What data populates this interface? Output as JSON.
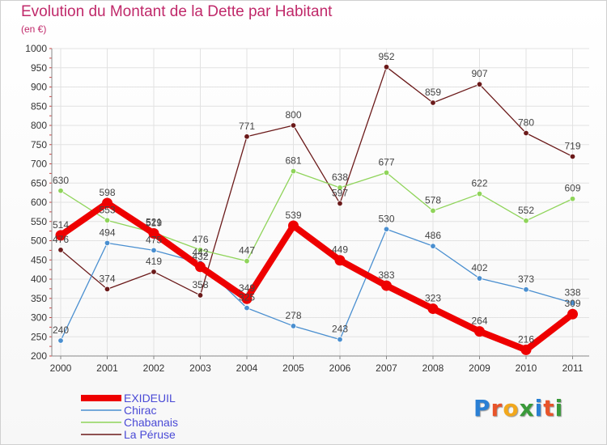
{
  "header": {
    "title": "Evolution du Montant de la Dette par Habitant",
    "subtitle": "(en €)"
  },
  "logo": {
    "text": "Proxiti",
    "colors": [
      "#2a7fd4",
      "#e8542a",
      "#f2a81d",
      "#3a9a3a",
      "#2a7fd4",
      "#e8542a",
      "#3a9a3a"
    ]
  },
  "chart_data": {
    "type": "line",
    "x": [
      "2000",
      "2001",
      "2002",
      "2003",
      "2004",
      "2005",
      "2006",
      "2007",
      "2008",
      "2009",
      "2010",
      "2011"
    ],
    "ylim": [
      200,
      1000
    ],
    "yticks": [
      200,
      250,
      300,
      350,
      400,
      450,
      500,
      550,
      600,
      650,
      700,
      750,
      800,
      850,
      900,
      950,
      1000
    ],
    "grid": true,
    "legend": "bottom-left",
    "series": [
      {
        "name": "La Péruse",
        "color": "#6b1a1a",
        "width": 1.3,
        "values": [
          476,
          374,
          419,
          358,
          771,
          800,
          597,
          952,
          859,
          907,
          780,
          719
        ]
      },
      {
        "name": "Chabanais",
        "color": "#8fd45a",
        "width": 1.3,
        "values": [
          630,
          553,
          521,
          476,
          447,
          681,
          638,
          677,
          578,
          622,
          552,
          609
        ]
      },
      {
        "name": "Chirac",
        "color": "#4a8fd0",
        "width": 1.3,
        "values": [
          240,
          494,
          475,
          442,
          325,
          278,
          243,
          530,
          486,
          402,
          373,
          338
        ]
      },
      {
        "name": "EXIDEUIL",
        "color": "#ee0000",
        "width": 8,
        "values": [
          514,
          598,
          519,
          432,
          349,
          539,
          449,
          383,
          323,
          264,
          216,
          309
        ]
      }
    ],
    "legend_order": [
      "EXIDEUIL",
      "Chirac",
      "Chabanais",
      "La Péruse"
    ]
  }
}
